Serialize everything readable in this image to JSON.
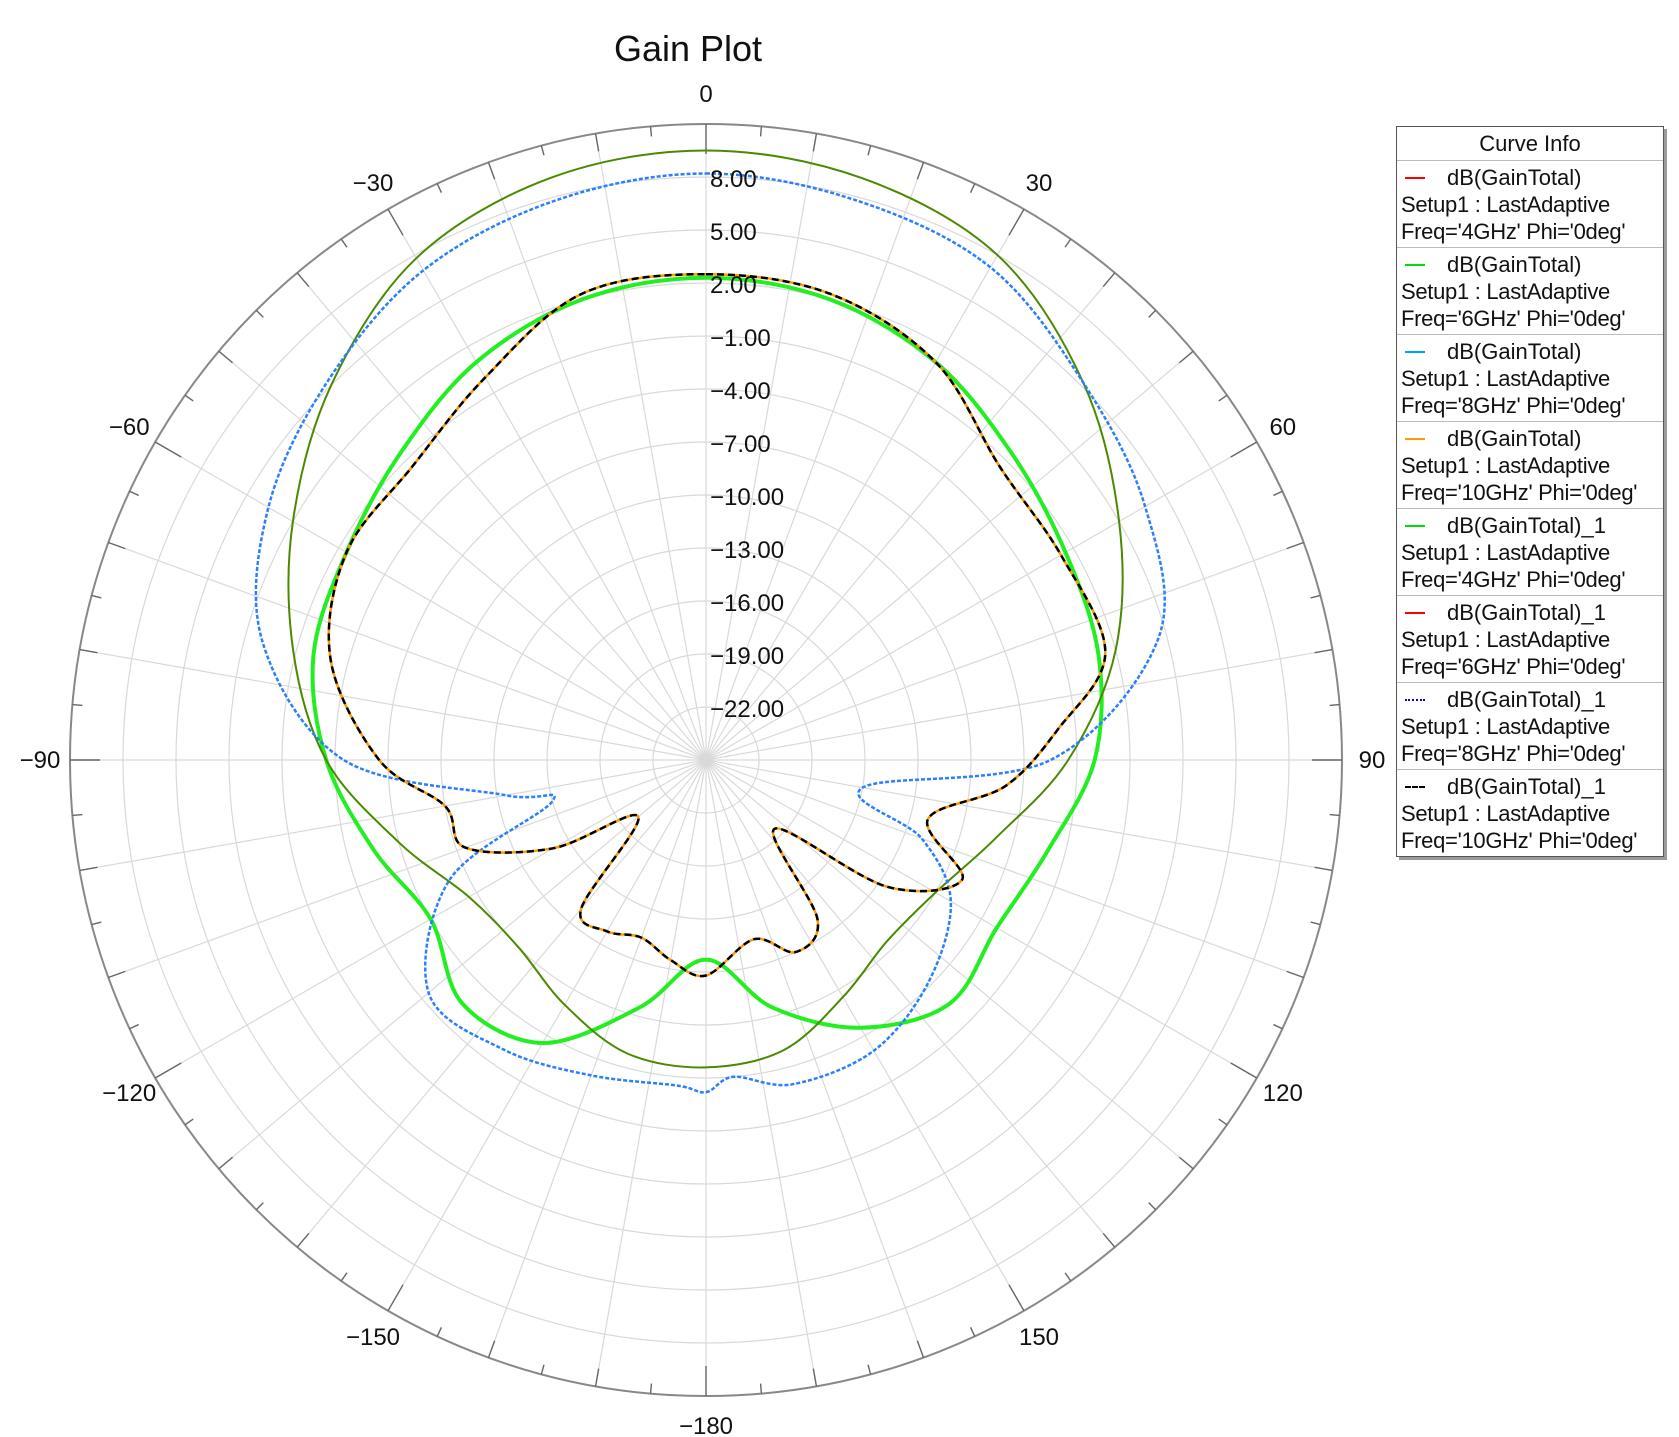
{
  "chart_data": {
    "type": "polar",
    "title": "Gain Plot",
    "angle_unit": "deg",
    "angle_direction": "clockwise, 0 at top",
    "angle_tick_labels": [
      "0",
      "30",
      "60",
      "90",
      "120",
      "150",
      "−180",
      "−150",
      "−120",
      "−90",
      "−60",
      "−30"
    ],
    "radial_tick_labels": [
      "8.00",
      "5.00",
      "2.00",
      "−1.00",
      "−4.00",
      "−7.00",
      "−10.00",
      "−13.00",
      "−16.00",
      "−19.00",
      "−22.00"
    ],
    "radial_range": [
      -25,
      11
    ],
    "legend_title": "Curve Info",
    "legend_position": "right",
    "grid": true,
    "series": [
      {
        "name": "dB(GainTotal)",
        "setup": "Setup1 : LastAdaptive",
        "params": "Freq='4GHz' Phi='0deg'",
        "color": "#ff0000",
        "style": "solid",
        "visible": false,
        "group": "4GHz",
        "data": []
      },
      {
        "name": "dB(GainTotal)",
        "setup": "Setup1 : LastAdaptive",
        "params": "Freq='6GHz' Phi='0deg'",
        "color": "#00dd00",
        "style": "solid",
        "visible": false,
        "group": "6GHz",
        "data": []
      },
      {
        "name": "dB(GainTotal)",
        "setup": "Setup1 : LastAdaptive",
        "params": "Freq='8GHz' Phi='0deg'",
        "color": "#00a0ff",
        "style": "solid",
        "visible": false,
        "group": "8GHz",
        "data": []
      },
      {
        "name": "dB(GainTotal)",
        "setup": "Setup1 : LastAdaptive",
        "params": "Freq='10GHz' Phi='0deg'",
        "color": "#ff9900",
        "style": "solid",
        "visible": false,
        "group": "10GHz",
        "data": []
      },
      {
        "name": "dB(GainTotal)_1",
        "setup": "Setup1 : LastAdaptive",
        "params": "Freq='4GHz' Phi='0deg'",
        "color": "#00dd00",
        "style": "solid",
        "visible": true,
        "group": "4GHz",
        "width": 4,
        "draw_color": "#22ee22",
        "data": [
          [
            0,
            2.3
          ],
          [
            15,
            2.0
          ],
          [
            30,
            1.0
          ],
          [
            45,
            -0.5
          ],
          [
            60,
            -1.5
          ],
          [
            75,
            -2.0
          ],
          [
            90,
            -3.0
          ],
          [
            105,
            -5.0
          ],
          [
            120,
            -6.0
          ],
          [
            135,
            -5.5
          ],
          [
            150,
            -7.5
          ],
          [
            165,
            -10.5
          ],
          [
            180,
            -13.7
          ],
          [
            -165,
            -10.5
          ],
          [
            -150,
            -6.5
          ],
          [
            -135,
            -5.5
          ],
          [
            -120,
            -7.0
          ],
          [
            -105,
            -5.5
          ],
          [
            -90,
            -3.5
          ],
          [
            -75,
            -2.0
          ],
          [
            -60,
            -1.5
          ],
          [
            -45,
            -0.5
          ],
          [
            -30,
            1.0
          ],
          [
            -15,
            2.0
          ]
        ]
      },
      {
        "name": "dB(GainTotal)_1",
        "setup": "Setup1 : LastAdaptive",
        "params": "Freq='6GHz' Phi='0deg'",
        "color": "#ff0000",
        "style": "solid",
        "visible": true,
        "group": "6GHz",
        "width": 2,
        "draw_color": "#4a8a00",
        "data": [
          [
            0,
            9.5
          ],
          [
            15,
            9.1
          ],
          [
            30,
            8.0
          ],
          [
            45,
            5.2
          ],
          [
            60,
            2.0
          ],
          [
            75,
            -1.0
          ],
          [
            90,
            -4.5
          ],
          [
            105,
            -8.0
          ],
          [
            120,
            -10.0
          ],
          [
            135,
            -10.5
          ],
          [
            150,
            -9.5
          ],
          [
            165,
            -8.0
          ],
          [
            180,
            -7.6
          ],
          [
            -165,
            -7.8
          ],
          [
            -150,
            -9.0
          ],
          [
            -135,
            -10.0
          ],
          [
            -120,
            -9.5
          ],
          [
            -105,
            -7.0
          ],
          [
            -90,
            -3.5
          ],
          [
            -75,
            -0.8
          ],
          [
            -60,
            2.0
          ],
          [
            -45,
            5.0
          ],
          [
            -30,
            7.8
          ],
          [
            -15,
            9.1
          ]
        ]
      },
      {
        "name": "dB(GainTotal)_1",
        "setup": "Setup1 : LastAdaptive",
        "params": "Freq='8GHz' Phi='0deg'",
        "color": "#0000ff",
        "style": "dotted",
        "visible": true,
        "group": "8GHz",
        "width": 2.5,
        "draw_color": "#2a7fff",
        "dash": "4 2",
        "data": [
          [
            0,
            8.2
          ],
          [
            15,
            7.8
          ],
          [
            30,
            7.2
          ],
          [
            45,
            5.2
          ],
          [
            60,
            3.7
          ],
          [
            75,
            1.5
          ],
          [
            90,
            -5.5
          ],
          [
            100,
            -16.0
          ],
          [
            110,
            -12.0
          ],
          [
            120,
            -9.0
          ],
          [
            135,
            -7.2
          ],
          [
            150,
            -6.0
          ],
          [
            165,
            -6.0
          ],
          [
            175,
            -7.0
          ],
          [
            180,
            -6.2
          ],
          [
            -175,
            -6.5
          ],
          [
            -160,
            -6.0
          ],
          [
            -145,
            -5.0
          ],
          [
            -130,
            -4.5
          ],
          [
            -115,
            -9.0
          ],
          [
            -105,
            -16.0
          ],
          [
            -100,
            -13.5
          ],
          [
            -90,
            -4.5
          ],
          [
            -75,
            1.0
          ],
          [
            -60,
            3.6
          ],
          [
            -45,
            5.3
          ],
          [
            -30,
            7.0
          ],
          [
            -15,
            7.8
          ]
        ]
      },
      {
        "name": "dB(GainTotal)_1",
        "setup": "Setup1 : LastAdaptive",
        "params": "Freq='10GHz' Phi='0deg'",
        "color": "#000000",
        "style": "dashed",
        "visible": true,
        "group": "10GHz",
        "width": 2.5,
        "draw_color": "#000000",
        "dash": "7 4",
        "under_color": "#ff9900",
        "data": [
          [
            0,
            2.5
          ],
          [
            15,
            2.3
          ],
          [
            30,
            1.0
          ],
          [
            45,
            -1.5
          ],
          [
            60,
            -1.8
          ],
          [
            75,
            -1.6
          ],
          [
            85,
            -5.0
          ],
          [
            95,
            -8.0
          ],
          [
            105,
            -12.0
          ],
          [
            115,
            -9.0
          ],
          [
            125,
            -12.5
          ],
          [
            135,
            -19.5
          ],
          [
            145,
            -14.0
          ],
          [
            155,
            -13.0
          ],
          [
            165,
            -14.5
          ],
          [
            180,
            -12.8
          ],
          [
            -170,
            -13.5
          ],
          [
            -160,
            -14.3
          ],
          [
            -150,
            -13.8
          ],
          [
            -140,
            -14.0
          ],
          [
            -130,
            -20.0
          ],
          [
            -120,
            -15.0
          ],
          [
            -110,
            -10.5
          ],
          [
            -100,
            -10.0
          ],
          [
            -90,
            -6.5
          ],
          [
            -75,
            -3.0
          ],
          [
            -60,
            -1.5
          ],
          [
            -45,
            -1.5
          ],
          [
            -30,
            0.0
          ],
          [
            -15,
            2.3
          ]
        ]
      }
    ]
  }
}
